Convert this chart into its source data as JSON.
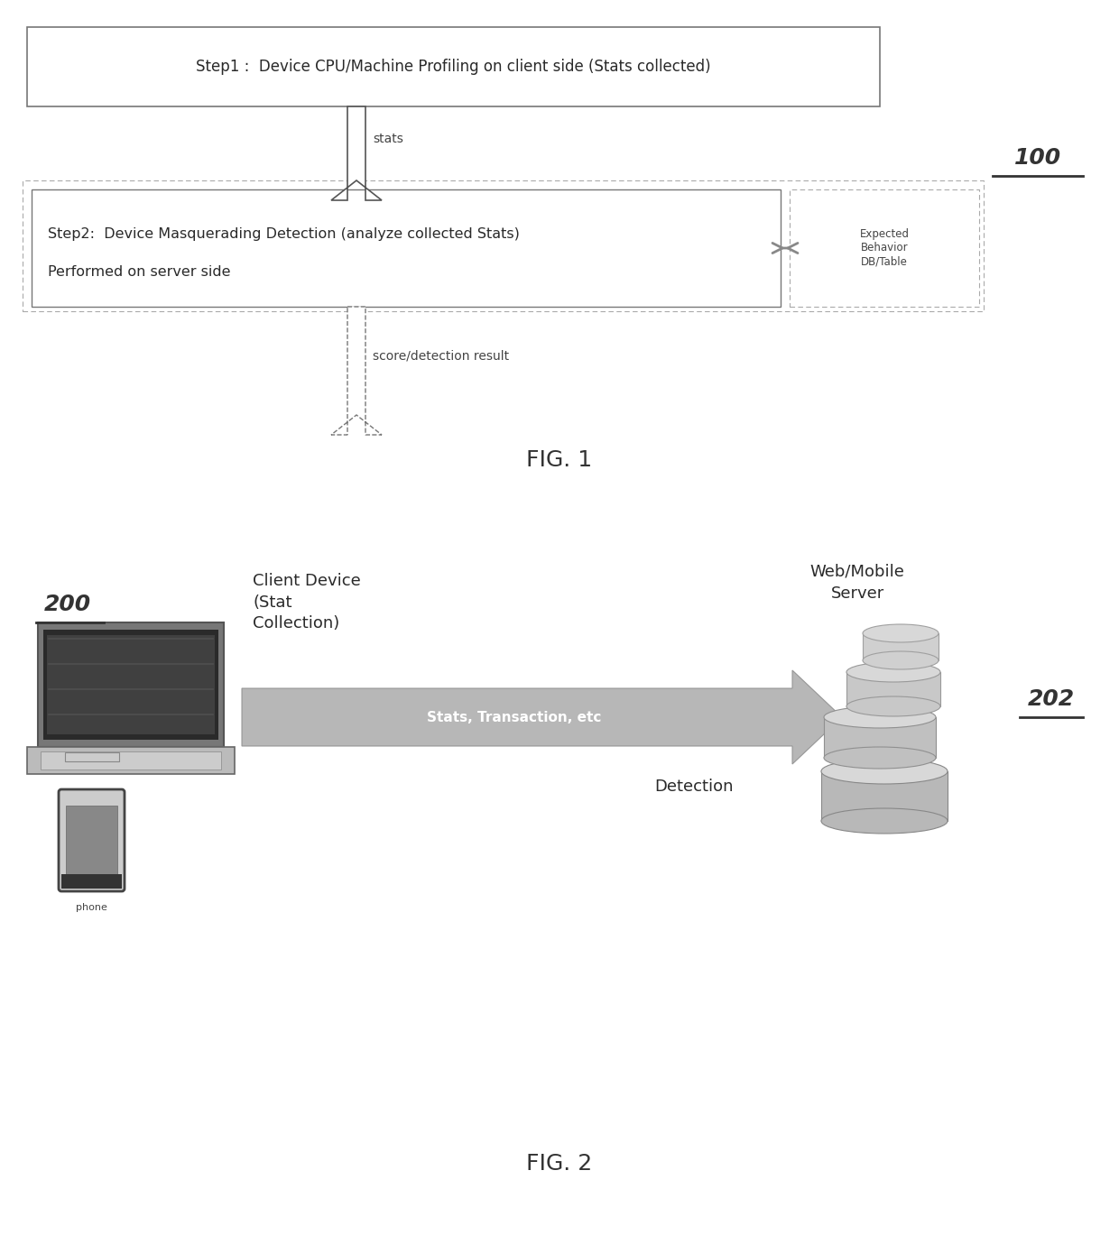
{
  "fig_width": 12.4,
  "fig_height": 13.69,
  "bg_color": "#ffffff",
  "fig1": {
    "title": "FIG. 1",
    "label_100": "100",
    "box1_text": "Step1 :  Device CPU/Machine Profiling on client side (Stats collected)",
    "arrow1_label": "stats",
    "box2_line1": "Step2:  Device Masquerading Detection (analyze collected Stats)",
    "box2_line2": "Performed on server side",
    "box3_text": "Expected\nBehavior\nDB/Table",
    "arrow2_label": "score/detection result"
  },
  "fig2": {
    "title": "FIG. 2",
    "label_200": "200",
    "label_202": "202",
    "client_label": "Client Device\n(Stat\nCollection)",
    "server_label": "Web/Mobile\nServer",
    "arrow_label": "Stats, Transaction, etc",
    "detection_label": "Detection",
    "phone_label": "phone"
  }
}
